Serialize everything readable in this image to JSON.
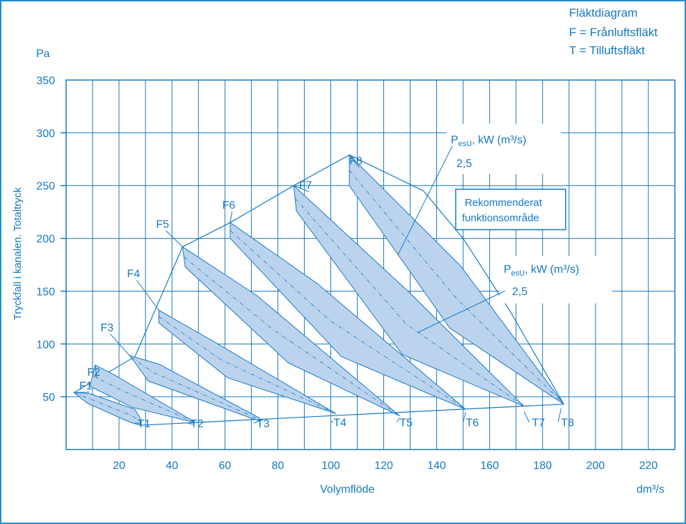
{
  "chart_data": {
    "type": "area",
    "title": "Fläktdiagram",
    "legend": [
      "F = Frånluftsfläkt",
      "T = Tilluftsfläkt"
    ],
    "y_unit": "Pa",
    "ylabel": "Tryckfall i kanalen. Totaltryck",
    "xlabel": "Volymflöde",
    "x_unit": "dm³/s",
    "xlim": [
      0,
      230
    ],
    "ylim": [
      0,
      350
    ],
    "x_ticks": [
      "20",
      "40",
      "60",
      "80",
      "100",
      "120",
      "140",
      "160",
      "180",
      "200",
      "220"
    ],
    "y_ticks": [
      "50",
      "100",
      "150",
      "200",
      "250",
      "300",
      "350"
    ],
    "annotations": {
      "power_a_main": "P",
      "power_a_sub": "esU",
      "power_a_tail": ", kW (m³/s)",
      "power_a_value": "2,5",
      "power_b_main": "P",
      "power_b_sub": "esU",
      "power_b_tail": ", kW (m³/s)",
      "power_b_value": "2,5",
      "recommended_line1": "Rekommenderat",
      "recommended_line2": "funktionsområde"
    },
    "fan_bands": [
      {
        "f": "F1",
        "t": "T1",
        "f_label": [
          5,
          57
        ],
        "t_label": [
          27,
          21
        ],
        "tick": [
          28,
          25
        ],
        "top": [
          [
            3,
            54
          ],
          [
            9,
            53
          ],
          [
            26,
            38
          ],
          [
            28,
            30
          ]
        ],
        "bottom": [
          [
            3,
            54
          ],
          [
            8,
            44
          ],
          [
            24,
            26
          ],
          [
            28,
            23
          ]
        ]
      },
      {
        "f": "F2",
        "t": "T2",
        "f_label": [
          8,
          70
        ],
        "t_label": [
          47,
          21
        ],
        "tick": [
          48,
          24
        ],
        "top": [
          [
            11,
            80
          ],
          [
            18,
            71
          ],
          [
            48,
            27
          ]
        ],
        "bottom": [
          [
            9,
            60
          ],
          [
            25,
            40
          ],
          [
            48,
            26
          ]
        ]
      },
      {
        "f": "F3",
        "t": "T3",
        "f_label": [
          13,
          112
        ],
        "t_label": [
          72,
          21
        ],
        "tick": [
          73,
          27
        ],
        "top": [
          [
            24,
            89
          ],
          [
            35,
            81
          ],
          [
            73,
            30
          ]
        ],
        "bottom": [
          [
            25,
            86
          ],
          [
            31,
            65
          ],
          [
            73,
            27
          ]
        ]
      },
      {
        "f": "F4",
        "t": "T4",
        "f_label": [
          23,
          163
        ],
        "t_label": [
          101,
          22
        ],
        "tick": [
          101,
          27
        ],
        "top": [
          [
            35,
            132
          ],
          [
            56,
            102
          ],
          [
            102,
            34
          ]
        ],
        "bottom": [
          [
            35,
            120
          ],
          [
            61,
            68
          ],
          [
            102,
            34
          ]
        ]
      },
      {
        "f": "F5",
        "t": "T5",
        "f_label": [
          34,
          210
        ],
        "t_label": [
          126,
          22
        ],
        "tick": [
          126,
          30
        ],
        "top": [
          [
            44,
            192
          ],
          [
            72,
            146
          ],
          [
            126,
            32
          ]
        ],
        "bottom": [
          [
            45,
            173
          ],
          [
            84,
            82
          ],
          [
            126,
            32
          ]
        ]
      },
      {
        "f": "F6",
        "t": "T6",
        "f_label": [
          59,
          228
        ],
        "t_label": [
          151,
          22
        ],
        "tick": [
          151,
          35
        ],
        "top": [
          [
            62,
            215
          ],
          [
            95,
            157
          ],
          [
            151,
            38
          ]
        ],
        "bottom": [
          [
            62,
            200
          ],
          [
            104,
            88
          ],
          [
            151,
            38
          ]
        ]
      },
      {
        "f": "F7",
        "t": "T7",
        "f_label": [
          88,
          247
        ],
        "t_label": [
          176,
          22
        ],
        "tick": [
          173,
          36
        ],
        "top": [
          [
            86,
            250
          ],
          [
            130,
            148
          ],
          [
            173,
            41
          ]
        ],
        "bottom": [
          [
            87,
            226
          ],
          [
            127,
            90
          ],
          [
            173,
            41
          ]
        ]
      },
      {
        "f": "F8",
        "t": "T8",
        "f_label": [
          107,
          270
        ],
        "t_label": [
          187,
          22
        ],
        "tick": [
          187,
          39
        ],
        "top": [
          [
            107,
            279
          ],
          [
            149,
            174
          ],
          [
            188,
            43
          ]
        ],
        "bottom": [
          [
            107,
            250
          ],
          [
            145,
            115
          ],
          [
            188,
            43
          ]
        ]
      }
    ]
  }
}
